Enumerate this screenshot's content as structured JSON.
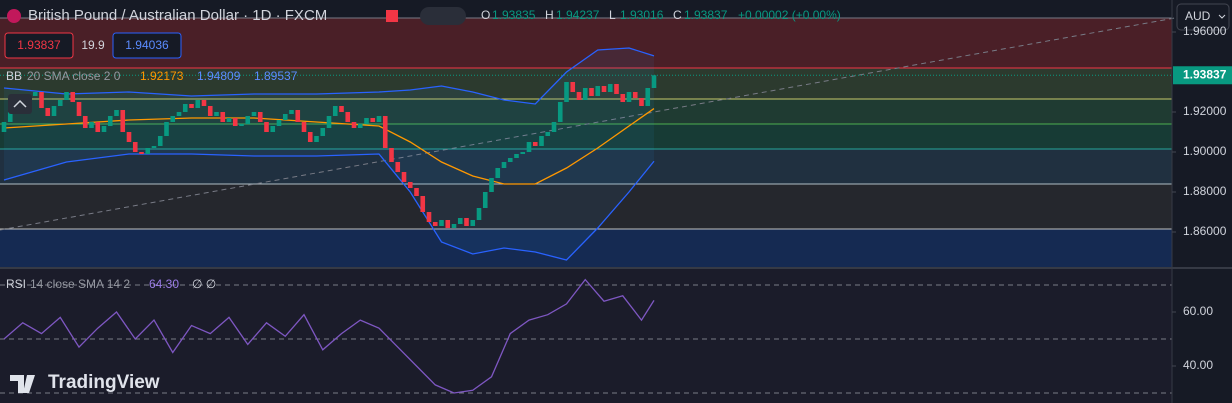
{
  "header": {
    "symbol": "British Pound / Australian Dollar · 1D · FXCM",
    "ohlc": [
      {
        "key": "O",
        "value": "1.93835"
      },
      {
        "key": "H",
        "value": "1.94237"
      },
      {
        "key": "L",
        "value": "1.93016"
      },
      {
        "key": "C",
        "value": "1.93837"
      }
    ],
    "change": "+0.00002 (+0.00%)",
    "sell": "1.93837",
    "spread": "19.9",
    "buy": "1.94036"
  },
  "bb_legend": {
    "name": "BB",
    "params": "20 SMA close 2 0",
    "basis": "1.92173",
    "upper": "1.94809",
    "lower": "1.89537"
  },
  "rsi_legend": {
    "name": "RSI",
    "params": "14 close SMA 14 2",
    "value": "64.30",
    "extra": "∅ ∅"
  },
  "currency": "AUD",
  "last_price": "1.93837",
  "logo": "TradingView",
  "chart": {
    "type": "candlestick",
    "first_open": 1.91,
    "close": [
      1.915,
      1.92,
      1.925,
      1.923,
      1.928,
      1.93,
      1.922,
      1.918,
      1.923,
      1.926,
      1.93,
      1.925,
      1.918,
      1.912,
      1.915,
      1.91,
      1.913,
      1.918,
      1.921,
      1.91,
      1.905,
      1.9,
      1.899,
      1.902,
      1.903,
      1.908,
      1.915,
      1.918,
      1.92,
      1.924,
      1.922,
      1.926,
      1.923,
      1.918,
      1.92,
      1.915,
      1.917,
      1.913,
      1.914,
      1.918,
      1.92,
      1.915,
      1.91,
      1.913,
      1.916,
      1.919,
      1.921,
      1.915,
      1.91,
      1.905,
      1.908,
      1.912,
      1.918,
      1.923,
      1.92,
      1.915,
      1.912,
      1.914,
      1.917,
      1.915,
      1.918,
      1.902,
      1.895,
      1.89,
      1.885,
      1.882,
      1.878,
      1.87,
      1.865,
      1.863,
      1.866,
      1.862,
      1.864,
      1.867,
      1.863,
      1.866,
      1.872,
      1.88,
      1.887,
      1.892,
      1.895,
      1.897,
      1.899,
      1.9,
      1.905,
      1.903,
      1.908,
      1.91,
      1.915,
      1.925,
      1.935,
      1.93,
      1.926,
      1.932,
      1.928,
      1.933,
      1.93,
      1.934,
      1.929,
      1.925,
      1.93,
      1.927,
      1.923,
      1.932,
      1.93837
    ],
    "bb_index": [
      0,
      10,
      20,
      30,
      40,
      50,
      60,
      65,
      70,
      75,
      80,
      85,
      90,
      95,
      100,
      104
    ],
    "bb_upper": [
      1.932,
      1.929,
      1.93,
      1.928,
      1.929,
      1.929,
      1.93,
      1.931,
      1.933,
      1.93,
      1.926,
      1.924,
      1.94,
      1.951,
      1.952,
      1.94809
    ],
    "bb_basis": [
      1.912,
      1.914,
      1.916,
      1.917,
      1.917,
      1.915,
      1.913,
      1.905,
      1.895,
      1.888,
      1.884,
      1.884,
      1.892,
      1.902,
      1.913,
      1.92173
    ],
    "bb_lower": [
      1.886,
      1.895,
      1.899,
      1.899,
      1.898,
      1.898,
      1.899,
      1.88,
      1.855,
      1.849,
      1.852,
      1.85,
      1.846,
      1.862,
      1.88,
      1.89537
    ],
    "yticks": [
      {
        "value": 1.96,
        "label": "1.96000"
      },
      {
        "value": 1.92,
        "label": "1.92000"
      },
      {
        "value": 1.9,
        "label": "1.90000"
      },
      {
        "value": 1.88,
        "label": "1.88000"
      },
      {
        "value": 1.86,
        "label": "1.86000"
      }
    ],
    "rsi_index": [
      0,
      3,
      6,
      9,
      12,
      15,
      18,
      21,
      24,
      27,
      30,
      33,
      36,
      39,
      42,
      45,
      48,
      51,
      54,
      57,
      60,
      63,
      66,
      69,
      72,
      75,
      78,
      81,
      84,
      87,
      90,
      93,
      96,
      99,
      102,
      104
    ],
    "rsi": [
      50,
      56,
      52,
      58,
      47,
      54,
      60,
      50,
      57,
      45,
      55,
      52,
      58,
      48,
      56,
      51,
      59,
      46,
      52,
      57,
      54,
      47,
      40,
      33,
      30,
      31,
      36,
      52,
      57,
      59,
      63,
      72,
      64,
      66,
      57,
      64.3
    ],
    "rsi_ticks": [
      {
        "value": 60,
        "label": "60.00"
      },
      {
        "value": 40,
        "label": "40.00"
      }
    ]
  }
}
